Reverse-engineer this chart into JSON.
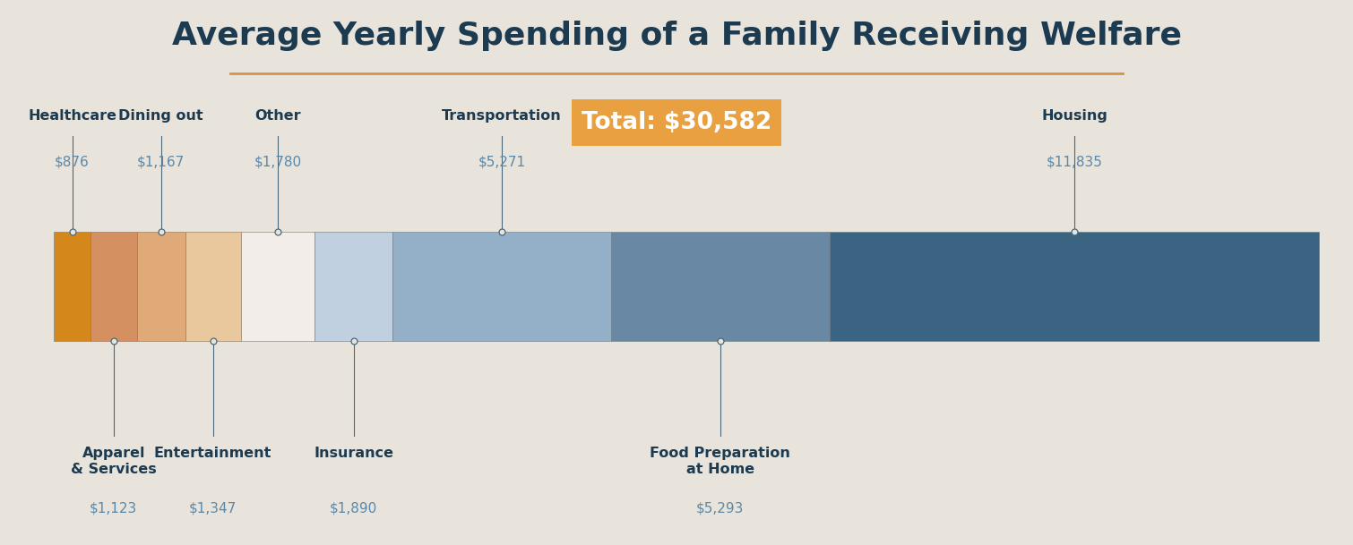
{
  "title": "Average Yearly Spending of a Family Receiving Welfare",
  "total_label": "Total: $30,582",
  "background_color": "#e8e4dc",
  "title_color": "#1c3a50",
  "title_fontsize": 26,
  "title_underline_color": "#d4944a",
  "total_box_color": "#e8a040",
  "total_text_color": "#ffffff",
  "segments": [
    {
      "label": "Healthcare",
      "value": 876,
      "color": "#d4881c",
      "label_pos": "top"
    },
    {
      "label": "Apparel\n& Services",
      "value": 1123,
      "color": "#d49060",
      "label_pos": "bottom"
    },
    {
      "label": "Dining out",
      "value": 1167,
      "color": "#e0aa78",
      "label_pos": "top"
    },
    {
      "label": "Entertainment",
      "value": 1347,
      "color": "#e8c89c",
      "label_pos": "bottom"
    },
    {
      "label": "Other",
      "value": 1780,
      "color": "#f2ede8",
      "label_pos": "top"
    },
    {
      "label": "Insurance",
      "value": 1890,
      "color": "#c0d0e0",
      "label_pos": "bottom"
    },
    {
      "label": "Transportation",
      "value": 5271,
      "color": "#94b0c8",
      "label_pos": "top"
    },
    {
      "label": "Food Preparation\nat Home",
      "value": 5293,
      "color": "#6888a4",
      "label_pos": "bottom"
    },
    {
      "label": "Housing",
      "value": 11835,
      "color": "#3a6482",
      "label_pos": "top"
    }
  ],
  "label_color": "#1c3a50",
  "value_color": "#5a88aa",
  "label_fontsize": 11.5,
  "value_fontsize": 11,
  "connector_color": "#4a6878"
}
